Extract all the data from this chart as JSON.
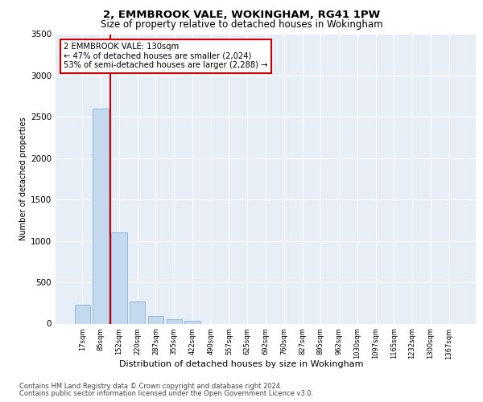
{
  "title1": "2, EMMBROOK VALE, WOKINGHAM, RG41 1PW",
  "title2": "Size of property relative to detached houses in Wokingham",
  "xlabel": "Distribution of detached houses by size in Wokingham",
  "ylabel": "Number of detached properties",
  "categories": [
    "17sqm",
    "85sqm",
    "152sqm",
    "220sqm",
    "287sqm",
    "355sqm",
    "422sqm",
    "490sqm",
    "557sqm",
    "625sqm",
    "692sqm",
    "760sqm",
    "827sqm",
    "895sqm",
    "962sqm",
    "1030sqm",
    "1097sqm",
    "1165sqm",
    "1232sqm",
    "1300sqm",
    "1367sqm"
  ],
  "values": [
    230,
    2600,
    1100,
    270,
    90,
    50,
    35,
    0,
    0,
    0,
    0,
    0,
    0,
    0,
    0,
    0,
    0,
    0,
    0,
    0,
    0
  ],
  "bar_color": "#c5d9ee",
  "bar_edge_color": "#8ab4d6",
  "vline_color": "#cc0000",
  "annotation_line1": "2 EMMBROOK VALE: 130sqm",
  "annotation_line2": "← 47% of detached houses are smaller (2,024)",
  "annotation_line3": "53% of semi-detached houses are larger (2,288) →",
  "annotation_box_color": "#ffffff",
  "annotation_box_edge": "#cc0000",
  "ylim": [
    0,
    3500
  ],
  "yticks": [
    0,
    500,
    1000,
    1500,
    2000,
    2500,
    3000,
    3500
  ],
  "footer1": "Contains HM Land Registry data © Crown copyright and database right 2024.",
  "footer2": "Contains public sector information licensed under the Open Government Licence v3.0.",
  "plot_bg_color": "#e8eef6"
}
